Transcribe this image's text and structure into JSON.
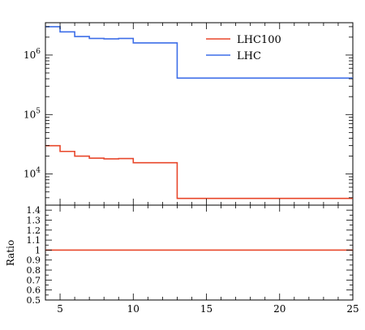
{
  "chart_data": {
    "type": "line",
    "line_style": "step",
    "x_range": [
      4,
      25
    ],
    "main_panel": {
      "y_scale": "log",
      "y_range": [
        3000,
        3500000
      ],
      "y_tick_labels": [
        "10^4",
        "10^5",
        "10^6"
      ],
      "series": [
        {
          "name": "LHC100",
          "color": "#e8472a",
          "bin_edges": [
            4,
            5,
            6,
            7,
            8,
            9,
            10,
            13,
            25
          ],
          "values": [
            30000,
            24000,
            20000,
            18500,
            18000,
            18200,
            15500,
            3900
          ]
        },
        {
          "name": "LHC",
          "color": "#3d6ee8",
          "bin_edges": [
            4,
            5,
            6,
            7,
            8,
            9,
            10,
            13,
            25
          ],
          "values": [
            3000000,
            2450000,
            2050000,
            1900000,
            1870000,
            1900000,
            1600000,
            410000
          ]
        }
      ]
    },
    "ratio_panel": {
      "ylabel": "Ratio",
      "y_range": [
        0.5,
        1.45
      ],
      "y_ticks": [
        "0.5",
        "0.6",
        "0.7",
        "0.8",
        "0.9",
        "1",
        "1.1",
        "1.2",
        "1.3",
        "1.4"
      ],
      "series": [
        {
          "name": "LHC100",
          "color": "#e8472a",
          "bin_edges": [
            4,
            25
          ],
          "values": [
            1
          ]
        }
      ]
    },
    "x_tick_labels": [
      "5",
      "10",
      "15",
      "20",
      "25"
    ],
    "legend": {
      "placement": "top-right",
      "entries": [
        {
          "label": "LHC100",
          "color": "#e8472a"
        },
        {
          "label": "LHC",
          "color": "#3d6ee8"
        }
      ]
    },
    "grid": false
  }
}
